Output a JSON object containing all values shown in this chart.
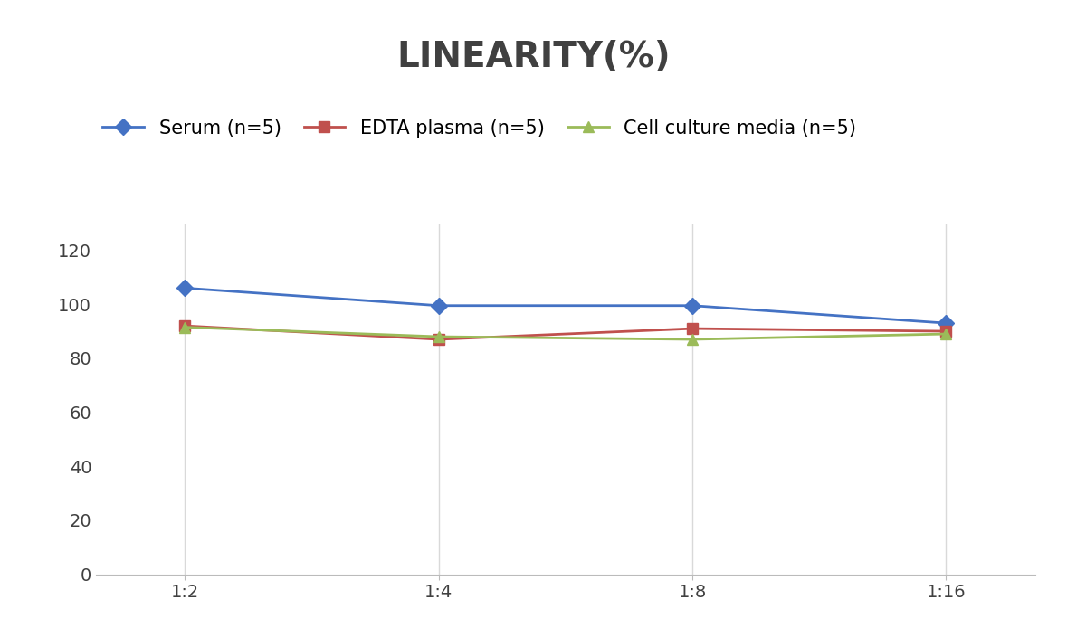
{
  "title": "LINEARITY(%)",
  "title_fontsize": 28,
  "title_fontweight": "bold",
  "title_color": "#404040",
  "x_labels": [
    "1:2",
    "1:4",
    "1:8",
    "1:16"
  ],
  "serum": [
    106,
    99.5,
    99.5,
    93
  ],
  "edta": [
    92,
    87,
    91,
    90
  ],
  "cell": [
    91.5,
    88,
    87,
    89
  ],
  "serum_label": "Serum (n=5)",
  "edta_label": "EDTA plasma (n=5)",
  "cell_label": "Cell culture media (n=5)",
  "serum_color": "#4472C4",
  "edta_color": "#C0504D",
  "cell_color": "#9BBB59",
  "ylim": [
    0,
    130
  ],
  "yticks": [
    0,
    20,
    40,
    60,
    80,
    100,
    120
  ],
  "background_color": "#FFFFFF",
  "grid_color": "#D9D9D9",
  "legend_fontsize": 15,
  "axis_fontsize": 14,
  "marker_size": 9,
  "line_width": 2.0
}
